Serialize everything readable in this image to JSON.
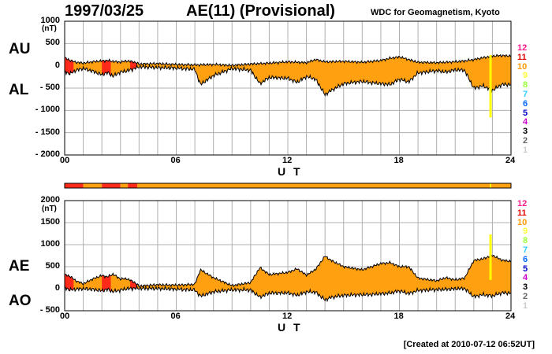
{
  "header": {
    "date": "1997/03/25",
    "title": "AE(11) (Provisional)",
    "source": "WDC for Geomagnetism, Kyoto"
  },
  "footer": {
    "created": "[Created at 2010-07-12 06:52UT]"
  },
  "colors": {
    "fill_normal": "#ffa010",
    "fill_few_stations": "#ff2a1a",
    "event_line": "#ffff00",
    "grid": "#b0b0b0"
  },
  "station_levels": [
    {
      "label": "12",
      "color": "#ff1a8c"
    },
    {
      "label": "11",
      "color": "#e60000"
    },
    {
      "label": "10",
      "color": "#ff9900"
    },
    {
      "label": "9",
      "color": "#ffff33"
    },
    {
      "label": "8",
      "color": "#99ff33"
    },
    {
      "label": "7",
      "color": "#33ccff"
    },
    {
      "label": "6",
      "color": "#0066ff"
    },
    {
      "label": "5",
      "color": "#0000cc"
    },
    {
      "label": "4",
      "color": "#cc00cc"
    },
    {
      "label": "3",
      "color": "#000000"
    },
    {
      "label": "2",
      "color": "#666666"
    },
    {
      "label": "1",
      "color": "#cccccc"
    }
  ],
  "event_marker_hour": 22.9,
  "station_bar": [
    {
      "from": 0,
      "to": 1.0,
      "level": "few"
    },
    {
      "from": 1.0,
      "to": 2.0,
      "level": "normal"
    },
    {
      "from": 2.0,
      "to": 3.0,
      "level": "few"
    },
    {
      "from": 3.0,
      "to": 3.4,
      "level": "normal"
    },
    {
      "from": 3.4,
      "to": 3.9,
      "level": "few"
    },
    {
      "from": 3.9,
      "to": 24,
      "level": "normal"
    }
  ],
  "few_station_intervals": [
    [
      0,
      0.5
    ],
    [
      2.0,
      2.5
    ],
    [
      3.5,
      3.9
    ]
  ],
  "chart_data": [
    {
      "type": "area",
      "upper_label": "AU",
      "lower_label": "AL",
      "ylabel": "(nT)",
      "ylim": [
        -2000,
        1000
      ],
      "yticks": [
        "1000",
        "500",
        "0",
        "- 500",
        "- 1000",
        "- 1500",
        "- 2000"
      ],
      "xlim": [
        0,
        24
      ],
      "xticks": [
        "00",
        "06",
        "12",
        "18",
        "24"
      ],
      "xlabel": "U T",
      "grid": true,
      "series": [
        {
          "name": "AU",
          "x": [
            0,
            0.3,
            0.6,
            1.0,
            1.5,
            2.0,
            2.3,
            2.6,
            3.0,
            3.3,
            3.7,
            4.0,
            5.0,
            6.0,
            7.0,
            8.0,
            9.0,
            10.0,
            11.0,
            12.0,
            13.0,
            13.5,
            14.0,
            15.0,
            16.0,
            17.0,
            17.5,
            18.0,
            18.5,
            19.0,
            20.0,
            21.0,
            21.5,
            22.0,
            22.5,
            23.0,
            23.5,
            24.0
          ],
          "values": [
            180,
            120,
            80,
            60,
            90,
            110,
            120,
            100,
            80,
            110,
            90,
            40,
            50,
            30,
            20,
            30,
            10,
            40,
            60,
            90,
            70,
            140,
            90,
            100,
            80,
            120,
            170,
            200,
            140,
            80,
            70,
            90,
            110,
            140,
            180,
            220,
            230,
            220
          ]
        },
        {
          "name": "AL",
          "x": [
            0,
            0.3,
            0.6,
            1.0,
            1.5,
            2.0,
            2.3,
            2.6,
            3.0,
            3.3,
            3.7,
            4.0,
            5.0,
            6.0,
            7.0,
            7.3,
            8.0,
            9.0,
            10.0,
            10.5,
            11.0,
            12.0,
            12.5,
            13.0,
            13.5,
            14.0,
            14.3,
            15.0,
            16.0,
            16.5,
            17.0,
            17.5,
            18.0,
            18.5,
            19.0,
            20.0,
            20.5,
            21.0,
            21.5,
            22.0,
            22.5,
            23.0,
            23.5,
            24.0
          ],
          "values": [
            -130,
            -180,
            -100,
            -60,
            -120,
            -200,
            -150,
            -230,
            -140,
            -120,
            -70,
            -20,
            -40,
            -50,
            -80,
            -420,
            -220,
            -60,
            -100,
            -400,
            -260,
            -280,
            -370,
            -240,
            -300,
            -650,
            -560,
            -400,
            -350,
            -380,
            -400,
            -420,
            -300,
            -360,
            -160,
            -110,
            -140,
            -90,
            -100,
            -500,
            -450,
            -550,
            -420,
            -420
          ]
        }
      ]
    },
    {
      "type": "area",
      "upper_label": "AE",
      "lower_label": "AO",
      "ylabel": "(nT)",
      "ylim": [
        -500,
        2000
      ],
      "yticks": [
        "2000",
        "1500",
        "1000",
        "500",
        "0",
        "- 500"
      ],
      "xlim": [
        0,
        24
      ],
      "xticks": [
        "00",
        "06",
        "12",
        "18",
        "24"
      ],
      "xlabel": "U T",
      "grid": true,
      "series": [
        {
          "name": "AE",
          "x": [
            0,
            0.3,
            0.6,
            1.0,
            1.5,
            2.0,
            2.3,
            2.6,
            3.0,
            3.3,
            3.7,
            4.0,
            5.0,
            6.0,
            7.0,
            7.3,
            8.0,
            9.0,
            10.0,
            10.5,
            11.0,
            12.0,
            12.5,
            13.0,
            13.5,
            14.0,
            14.3,
            15.0,
            16.0,
            16.5,
            17.0,
            17.5,
            18.0,
            18.5,
            19.0,
            20.0,
            20.5,
            21.0,
            21.5,
            22.0,
            22.5,
            23.0,
            23.5,
            24.0
          ],
          "values": [
            320,
            280,
            180,
            110,
            220,
            300,
            270,
            330,
            220,
            230,
            160,
            60,
            90,
            80,
            100,
            430,
            250,
            70,
            140,
            480,
            320,
            370,
            450,
            310,
            440,
            740,
            650,
            500,
            430,
            500,
            570,
            590,
            500,
            500,
            240,
            180,
            250,
            200,
            240,
            640,
            680,
            760,
            650,
            620
          ]
        },
        {
          "name": "AO",
          "x": [
            0,
            0.3,
            0.6,
            1.0,
            1.5,
            2.0,
            2.3,
            2.6,
            3.0,
            3.3,
            3.7,
            4.0,
            5.0,
            6.0,
            7.0,
            7.3,
            8.0,
            9.0,
            10.0,
            10.5,
            11.0,
            12.0,
            12.5,
            13.0,
            13.5,
            14.0,
            14.3,
            15.0,
            16.0,
            16.5,
            17.0,
            17.5,
            18.0,
            18.5,
            19.0,
            20.0,
            20.5,
            21.0,
            21.5,
            22.0,
            22.5,
            23.0,
            23.5,
            24.0
          ],
          "values": [
            25,
            -30,
            -10,
            0,
            -15,
            -45,
            -15,
            -65,
            -30,
            -5,
            10,
            10,
            5,
            -10,
            -30,
            -170,
            -70,
            -25,
            -30,
            -190,
            -100,
            -95,
            -150,
            -70,
            -80,
            -255,
            -200,
            -150,
            -135,
            -130,
            -115,
            -100,
            -50,
            -110,
            -40,
            -20,
            -15,
            0,
            5,
            -180,
            -135,
            -165,
            -95,
            -100
          ]
        }
      ]
    }
  ]
}
